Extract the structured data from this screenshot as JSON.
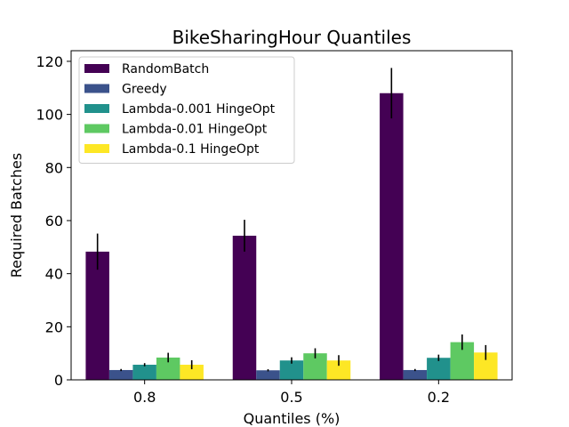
{
  "chart_data": {
    "type": "bar",
    "title": "BikeSharingHour Quantiles",
    "xlabel": "Quantiles (%)",
    "ylabel": "Required Batches",
    "categories": [
      "0.8",
      "0.5",
      "0.2"
    ],
    "ylim": [
      0,
      124
    ],
    "yticks": [
      0,
      20,
      40,
      60,
      80,
      100,
      120
    ],
    "legend_position": "top-left",
    "grid": false,
    "series": [
      {
        "name": "RandomBatch",
        "color": "#440154",
        "values": [
          48.3,
          54.3,
          108.0
        ],
        "errors": [
          6.8,
          6.0,
          9.5
        ]
      },
      {
        "name": "Greedy",
        "color": "#3b528b",
        "values": [
          3.7,
          3.6,
          3.7
        ],
        "errors": [
          0.4,
          0.4,
          0.4
        ]
      },
      {
        "name": "Lambda-0.001 HingeOpt",
        "color": "#21918c",
        "values": [
          5.7,
          7.3,
          8.3
        ],
        "errors": [
          0.6,
          1.2,
          1.2
        ]
      },
      {
        "name": "Lambda-0.01 HingeOpt",
        "color": "#5ec962",
        "values": [
          8.4,
          10.0,
          14.2
        ],
        "errors": [
          1.8,
          1.9,
          2.9
        ]
      },
      {
        "name": "Lambda-0.1 HingeOpt",
        "color": "#fde725",
        "values": [
          5.7,
          7.3,
          10.3
        ],
        "errors": [
          1.7,
          2.0,
          2.8
        ]
      }
    ]
  }
}
